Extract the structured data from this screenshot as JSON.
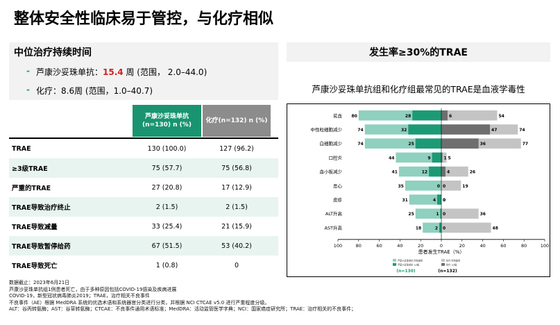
{
  "title": "整体安全性临床易于管控，与化疗相似",
  "left_panel": {
    "heading": "中位治疗持续时间",
    "bullet1_prefix": "芦康沙妥珠单抗：",
    "bullet1_value": "15.4",
    "bullet1_suffix": "周 (范围， 2.0–44.0)",
    "bullet2": "化疗：8.6周 (范围，1.0–40.7)"
  },
  "right_panel": {
    "heading": "发生率≥30%的TRAE",
    "subtitle": "芦康沙妥珠单抗组和化疗组最常见的TRAE是血液学毒性"
  },
  "table": {
    "col1_header": "芦康沙妥珠单抗 (n=130) n (%)",
    "col2_header": "化疗(n=132) n (%)",
    "rows": [
      {
        "label": "TRAE",
        "v1": "130 (100.0)",
        "v2": "127 (96.2)"
      },
      {
        "label": "≥3级TRAE",
        "v1": "75 (57.7)",
        "v2": "75 (56.8)"
      },
      {
        "label": "严重的TRAE",
        "v1": "27 (20.8)",
        "v2": "17 (12.9)"
      },
      {
        "label": "TRAE导致治疗终止",
        "v1": "2 (1.5)",
        "v2": "2 (1.5)"
      },
      {
        "label": "TRAE导致减量",
        "v1": "33 (25.4)",
        "v2": "21 (15.9)"
      },
      {
        "label": "TRAE导致暂停给药",
        "v1": "67 (51.5)",
        "v2": "53 (40.2)"
      },
      {
        "label": "TRAE导致死亡",
        "v1": "1 (0.8)",
        "v2": "0"
      }
    ]
  },
  "footer": [
    "数据截止：2023年6月21日",
    "芦康沙妥珠单抗组1例患者死亡，由于多种原因包括COVID-19感染及疾病进展",
    "COVID-19，新型冠状病毒肺炎2019；TRAE，治疗相关不良事件",
    "不良事件（AE）根据 MedDRA 系统的优选术语和系统器官分类进行分类，并根据 NCI CTCAE v5.0 进行严重程度分级。",
    "ALT：谷丙转氨酶；AST：谷草转氨酶；CTCAE：不良事件通用术语标准；MedDRA：活动监管医学字典；NCI：国家癌症研究所；TRAE：治疗相关的不良事件；"
  ],
  "chart_data": {
    "type": "bar",
    "orientation": "horizontal-butterfly",
    "xlabel": "患者发生TRAE（%）",
    "xlim": [
      -100,
      100
    ],
    "xticks": [
      "100",
      "80",
      "60",
      "40",
      "20",
      "0",
      "20",
      "40",
      "60",
      "80",
      "100"
    ],
    "categories": [
      "贫血",
      "中性粒细胞减少",
      "白细胞减少",
      "口腔炎",
      "血小板减少",
      "恶心",
      "皮疹",
      "ALT升高",
      "AST升高"
    ],
    "series": [
      {
        "side": "left",
        "group": "芦康沙妥珠单抗",
        "part": "any grade",
        "values": [
          80,
          74,
          74,
          44,
          41,
          35,
          31,
          25,
          18
        ],
        "color": "#8fd0bf"
      },
      {
        "side": "left",
        "group": "芦康沙妥珠单抗",
        "part": "grade ≥3",
        "values": [
          28,
          32,
          25,
          9,
          12,
          0,
          4,
          1,
          2
        ],
        "color": "#1c9a76"
      },
      {
        "side": "right",
        "group": "化疗",
        "part": "any grade",
        "values": [
          54,
          74,
          77,
          5,
          26,
          19,
          0,
          36,
          48
        ],
        "color": "#c4c4c4"
      },
      {
        "side": "right",
        "group": "化疗",
        "part": "grade ≥3",
        "values": [
          6,
          47,
          36,
          1,
          4,
          0,
          0,
          0,
          0
        ],
        "color": "#6e6e6e"
      }
    ],
    "legend": {
      "items": [
        "芦康沙妥珠单抗 所有级别",
        "芦康沙妥珠单抗 ≥3级",
        "化疗 所有级别",
        "化疗 ≥3级"
      ],
      "left_n": "(n=130)",
      "right_n": "(n=132)",
      "left_n_color": "#1c9a76"
    }
  }
}
